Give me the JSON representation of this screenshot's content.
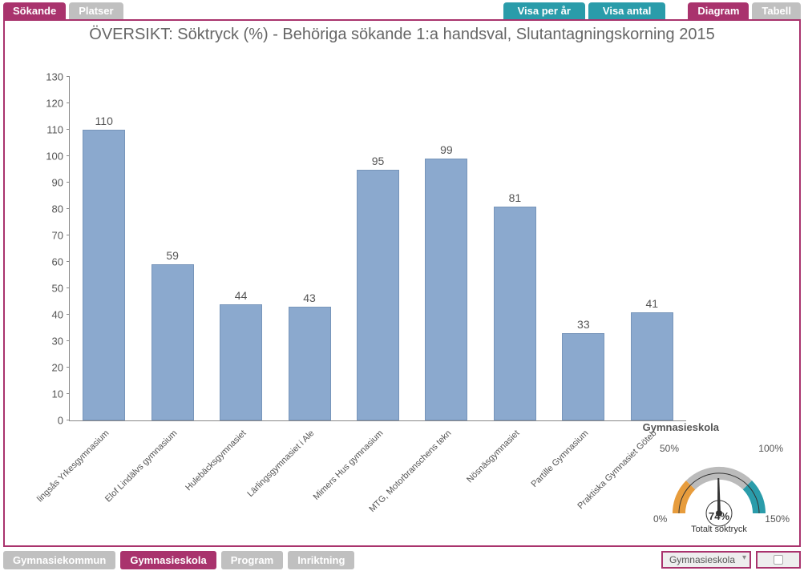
{
  "topbar": {
    "tabs_left": [
      {
        "label": "Sökande",
        "active": true
      },
      {
        "label": "Platser",
        "active": false
      }
    ],
    "tabs_mid": [
      {
        "label": "Visa per år"
      },
      {
        "label": "Visa antal"
      }
    ],
    "tabs_right": [
      {
        "label": "Diagram",
        "active": true
      },
      {
        "label": "Tabell",
        "active": false
      }
    ]
  },
  "chart": {
    "title": "ÖVERSIKT: Söktryck (%) - Behöriga sökande 1:a handsval, Slutantagningskorning 2015",
    "type": "bar",
    "ylim": [
      0,
      130
    ],
    "ytick_step": 10,
    "bar_color": "#8ba9ce",
    "bar_border": "#7795ba",
    "text_color": "#555555",
    "axis_title": "Gymnasieskola",
    "categories": [
      "lingsås Yrkesgymnasium",
      "Elof Lindälvs gymnasium",
      "Hulebäcksgymnasiet",
      "Lärlingsgymnasiet i Ale",
      "Mimers Hus gymnasium",
      "MTG, Motorbranschens tekn",
      "Nösnäsgymnasiet",
      "Partille Gymnasium",
      "Praktiska Gymnasiet Göteb"
    ],
    "values": [
      110,
      59,
      44,
      43,
      95,
      99,
      81,
      33,
      41
    ]
  },
  "gauge": {
    "labels": {
      "l0": "0%",
      "l50": "50%",
      "l100": "100%",
      "l150": "150%"
    },
    "value_label": "74%",
    "caption": "Totalt söktryck",
    "value_pct_of_150": 49.3,
    "colors": {
      "seg1": "#e79c3c",
      "seg2": "#bbbbbb",
      "seg3": "#2a9caa"
    }
  },
  "bottombar": {
    "tabs": [
      {
        "label": "Gymnasiekommun",
        "active": false
      },
      {
        "label": "Gymnasieskola",
        "active": true
      },
      {
        "label": "Program",
        "active": false
      },
      {
        "label": "Inriktning",
        "active": false
      }
    ],
    "dropdown": {
      "selected": "Gymnasieskola"
    }
  }
}
